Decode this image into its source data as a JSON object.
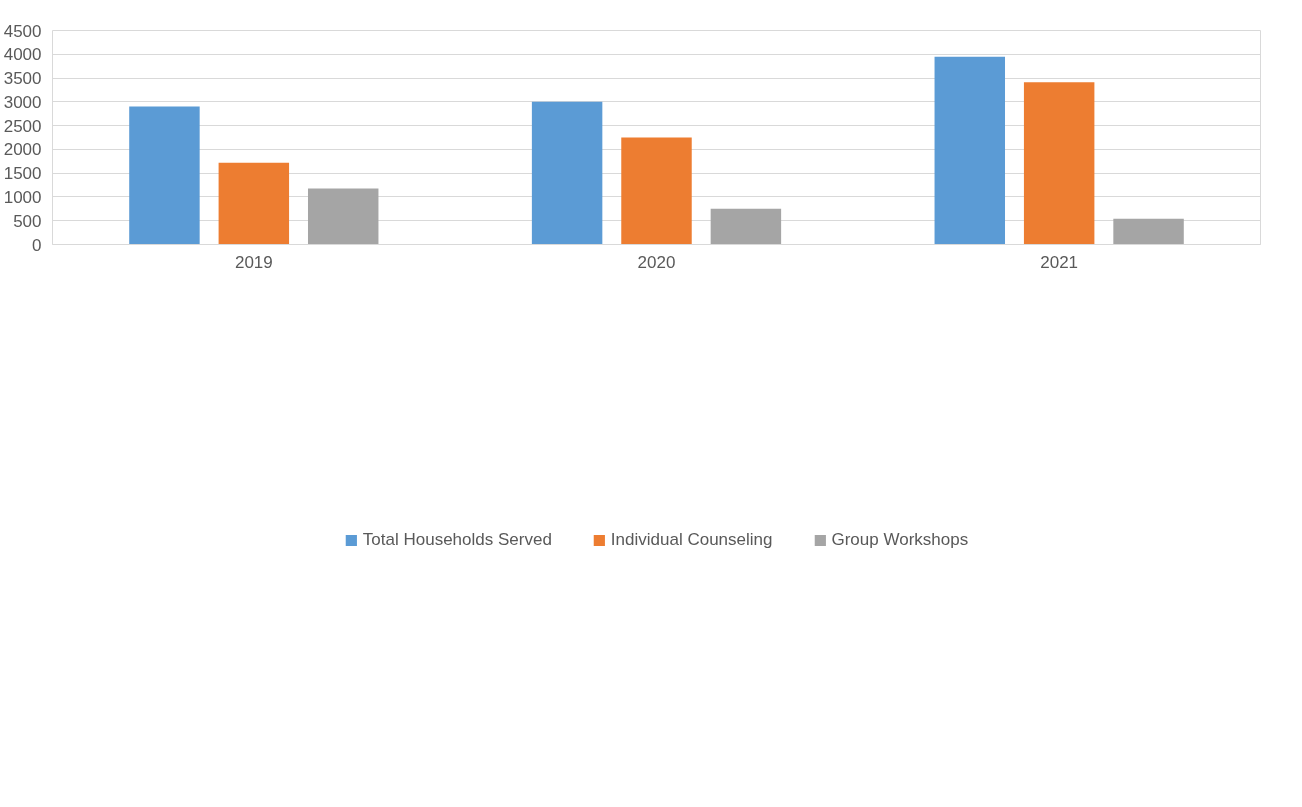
{
  "chart_data": {
    "type": "bar",
    "categories": [
      "2019",
      "2020",
      "2021"
    ],
    "series": [
      {
        "name": "Total Households Served",
        "color": "#5b9bd5",
        "values": [
          2900,
          3000,
          3950
        ]
      },
      {
        "name": "Individual Counseling",
        "color": "#ed7d31",
        "values": [
          1720,
          2250,
          3410
        ]
      },
      {
        "name": "Group Workshops",
        "color": "#a5a5a5",
        "values": [
          1180,
          750,
          540
        ]
      }
    ],
    "ylim": [
      0,
      4500
    ],
    "yticks": [
      0,
      500,
      1000,
      1500,
      2000,
      2500,
      3000,
      3500,
      4000,
      4500
    ],
    "grid": "y",
    "legend": "bottom"
  }
}
